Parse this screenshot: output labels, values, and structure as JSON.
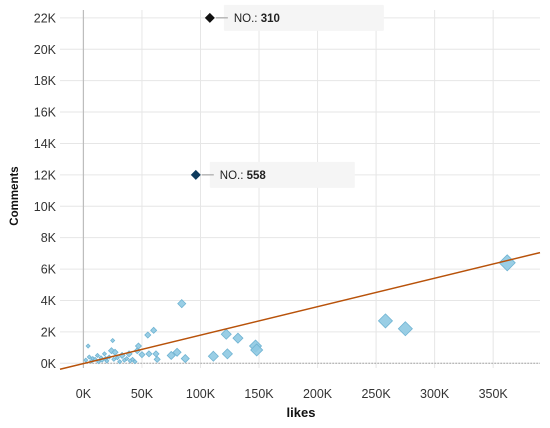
{
  "chart_data": {
    "type": "scatter",
    "xlabel": "likes",
    "ylabel": "Comments",
    "xlim": [
      -20000,
      390000
    ],
    "ylim": [
      -300,
      22500
    ],
    "x_ticks": [
      "0K",
      "50K",
      "100K",
      "150K",
      "200K",
      "250K",
      "300K",
      "350K"
    ],
    "x_tick_values": [
      0,
      50000,
      100000,
      150000,
      200000,
      250000,
      300000,
      350000
    ],
    "y_ticks": [
      "0K",
      "2K",
      "4K",
      "6K",
      "8K",
      "10K",
      "12K",
      "14K",
      "16K",
      "18K",
      "20K",
      "22K"
    ],
    "y_tick_values": [
      0,
      2000,
      4000,
      6000,
      8000,
      10000,
      12000,
      14000,
      16000,
      18000,
      20000,
      22000
    ],
    "grid": true,
    "marker": "diamond",
    "colors": {
      "points": "#8ec9e2",
      "points_stroke": "#6fb3d2",
      "trend": "#b8520a",
      "grid": "#e6e6e6",
      "annotation_310": "#111111",
      "annotation_558": "#0d3a5c",
      "zero_line": "#9e9e9e"
    },
    "trendline": {
      "x": [
        -20000,
        390000
      ],
      "y": [
        -380,
        7050
      ]
    },
    "points": [
      {
        "x": 2000,
        "y": 200
      },
      {
        "x": 4000,
        "y": 1100
      },
      {
        "x": 5000,
        "y": 400
      },
      {
        "x": 7000,
        "y": 150
      },
      {
        "x": 8000,
        "y": 300
      },
      {
        "x": 10000,
        "y": 250
      },
      {
        "x": 12000,
        "y": 500
      },
      {
        "x": 13000,
        "y": 100
      },
      {
        "x": 15000,
        "y": 350
      },
      {
        "x": 16000,
        "y": 200
      },
      {
        "x": 18000,
        "y": 600
      },
      {
        "x": 19000,
        "y": 300
      },
      {
        "x": 20000,
        "y": 150
      },
      {
        "x": 22000,
        "y": 400
      },
      {
        "x": 24000,
        "y": 800
      },
      {
        "x": 25000,
        "y": 1450
      },
      {
        "x": 26000,
        "y": 250
      },
      {
        "x": 27000,
        "y": 700
      },
      {
        "x": 29000,
        "y": 350
      },
      {
        "x": 31000,
        "y": 100
      },
      {
        "x": 33000,
        "y": 500
      },
      {
        "x": 35000,
        "y": 200
      },
      {
        "x": 37000,
        "y": 300
      },
      {
        "x": 39000,
        "y": 600
      },
      {
        "x": 40000,
        "y": 150
      },
      {
        "x": 42000,
        "y": 250
      },
      {
        "x": 44000,
        "y": 100
      },
      {
        "x": 46000,
        "y": 800
      },
      {
        "x": 47000,
        "y": 1100
      },
      {
        "x": 50000,
        "y": 550
      },
      {
        "x": 55000,
        "y": 1800
      },
      {
        "x": 56000,
        "y": 600
      },
      {
        "x": 60000,
        "y": 2100
      },
      {
        "x": 62000,
        "y": 600
      },
      {
        "x": 63000,
        "y": 250
      },
      {
        "x": 75000,
        "y": 500
      },
      {
        "x": 80000,
        "y": 700
      },
      {
        "x": 84000,
        "y": 3800
      },
      {
        "x": 87000,
        "y": 300
      },
      {
        "x": 111000,
        "y": 450
      },
      {
        "x": 122000,
        "y": 1850
      },
      {
        "x": 123000,
        "y": 600
      },
      {
        "x": 132000,
        "y": 1600
      },
      {
        "x": 147000,
        "y": 1100
      },
      {
        "x": 148000,
        "y": 850
      },
      {
        "x": 258000,
        "y": 2700
      },
      {
        "x": 275000,
        "y": 2200
      },
      {
        "x": 362000,
        "y": 6400
      }
    ],
    "point_sizes": [
      2,
      2,
      2,
      2,
      2,
      2,
      2,
      2,
      2,
      2,
      2,
      2,
      2,
      2,
      3,
      2,
      2,
      3,
      2,
      2,
      3,
      2,
      2,
      3,
      2,
      2,
      2,
      3,
      3,
      3,
      3,
      3,
      3,
      3,
      3,
      4,
      4,
      4,
      4,
      5,
      5,
      5,
      5,
      6,
      6,
      7,
      7,
      8
    ],
    "annotations": [
      {
        "x": 108000,
        "y": 22000,
        "prefix": "NO.:",
        "value": "310"
      },
      {
        "x": 96000,
        "y": 12000,
        "prefix": "NO.:",
        "value": "558"
      }
    ]
  }
}
